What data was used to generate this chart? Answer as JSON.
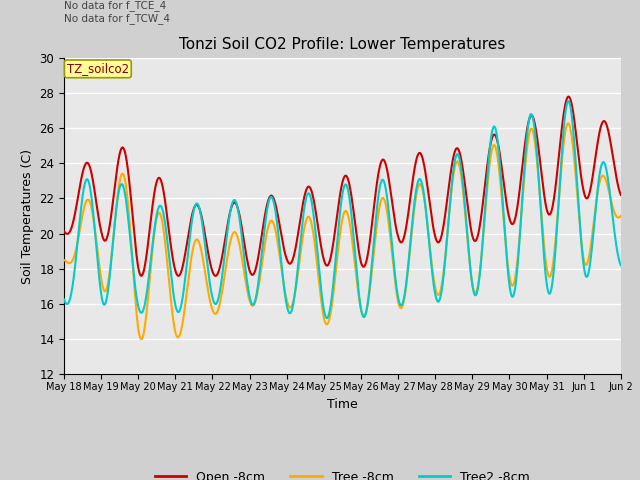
{
  "title": "Tonzi Soil CO2 Profile: Lower Temperatures",
  "xlabel": "Time",
  "ylabel": "Soil Temperatures (C)",
  "ylim": [
    12,
    30
  ],
  "yticks": [
    12,
    14,
    16,
    18,
    20,
    22,
    24,
    26,
    28,
    30
  ],
  "fig_bg": "#d0d0d0",
  "ax_bg": "#e8e8e8",
  "annotation_text": "No data for f_TCE_4\nNo data for f_TCW_4",
  "legend_box_text": "TZ_soilco2",
  "legend_box_facecolor": "#ffff99",
  "legend_box_edgecolor": "#999900",
  "open_color": "#cc0000",
  "tree_color": "#ffaa00",
  "tree2_color": "#00cccc",
  "open_label": "Open -8cm",
  "tree_label": "Tree -8cm",
  "tree2_label": "Tree2 -8cm",
  "lw": 1.5,
  "open_peaks": [
    22.1,
    25.3,
    24.6,
    22.1,
    21.3,
    22.1,
    22.2,
    23.0,
    23.5,
    24.7,
    24.5,
    25.1,
    26.0,
    27.2,
    28.2,
    25.0
  ],
  "open_troughs": [
    20.0,
    19.8,
    17.6,
    17.6,
    17.6,
    17.6,
    18.3,
    18.2,
    18.0,
    19.5,
    19.5,
    19.5,
    20.5,
    21.0,
    22.0,
    22.0
  ],
  "tree_peaks": [
    18.5,
    24.1,
    22.9,
    19.9,
    19.5,
    20.5,
    20.9,
    21.0,
    21.5,
    22.4,
    23.1,
    24.8,
    25.2,
    26.5,
    26.1,
    21.0
  ],
  "tree_troughs": [
    18.5,
    17.0,
    14.0,
    14.0,
    15.4,
    15.9,
    15.9,
    14.8,
    15.3,
    15.7,
    16.5,
    16.6,
    17.0,
    17.5,
    18.0,
    21.0
  ],
  "tree2_peaks": [
    19.9,
    25.2,
    21.0,
    22.0,
    21.5,
    22.2,
    22.0,
    22.5,
    23.0,
    23.1,
    23.1,
    25.5,
    26.5,
    27.0,
    27.9,
    21.0
  ],
  "tree2_troughs": [
    16.0,
    16.0,
    15.5,
    15.5,
    16.0,
    16.0,
    15.5,
    15.2,
    15.2,
    15.9,
    16.1,
    16.5,
    16.4,
    16.5,
    17.5,
    18.0
  ],
  "xtick_labels": [
    "May 18",
    "May 19",
    "May 20",
    "May 21",
    "May 22",
    "May 23",
    "May 24",
    "May 25",
    "May 26",
    "May 27",
    "May 28",
    "May 29",
    "May 30",
    "May 31",
    "Jun 1",
    "Jun 2"
  ],
  "num_days": 15
}
